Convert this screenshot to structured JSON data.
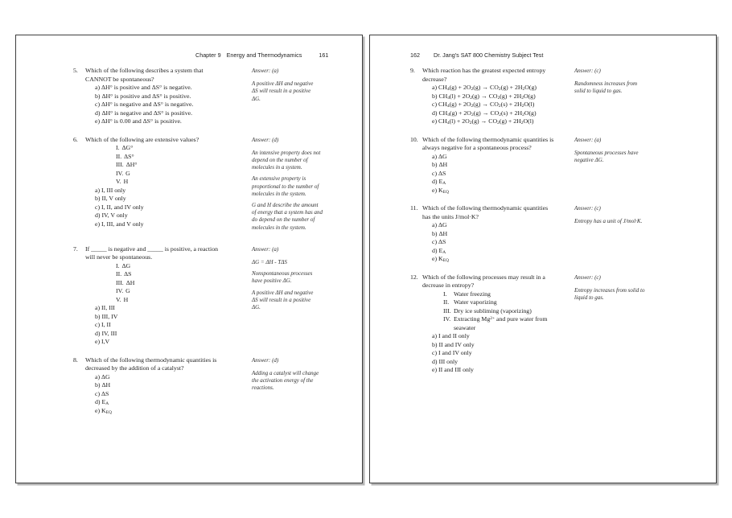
{
  "pages": [
    {
      "header": {
        "chapter": "Chapter 9",
        "title": "Energy and Thermodynamics",
        "page_number": "161"
      },
      "questions": [
        {
          "num": "5.",
          "text": "Which of the following describes a system that<br>CANNOT be spontaneous?",
          "romans": [],
          "roman_tab": false,
          "options": [
            "a) ΔH° is positive and ΔS° is negative.",
            "b) ΔH° is positive and ΔS° is positive.",
            "c) ΔH° is negative and ΔS° is negative.",
            "d) ΔH° is negative and ΔS° is positive.",
            "e) ΔH° is 0.00 and ΔS° is positive."
          ],
          "answer": {
            "label": "Answer: (a)",
            "notes": [
              "A positive ΔH and negative<br>ΔS will result in a positive<br>ΔG."
            ]
          }
        },
        {
          "num": "6.",
          "text": "Which of the following are extensive values?",
          "romans": [
            {
              "n": "I.",
              "t": "ΔG°"
            },
            {
              "n": "II.",
              "t": "ΔS°"
            },
            {
              "n": "III.",
              "t": "ΔH°"
            },
            {
              "n": "IV.",
              "t": "G"
            },
            {
              "n": "V.",
              "t": "H"
            }
          ],
          "roman_tab": false,
          "options": [
            "a) I, III only",
            "b) II, V only",
            "c) I, II, and IV only",
            "d) IV, V only",
            "e) I, III, and V only"
          ],
          "answer": {
            "label": "Answer: (d)",
            "notes": [
              "An intensive property does not<br>depend on the number of<br>molecules in a system.",
              "An extensive property is<br>proportional to the number of<br>molecules in the system.",
              "G and H describe the amount<br>of energy that a system has and<br>do depend on the number of<br>molecules in the system."
            ]
          }
        },
        {
          "num": "7.",
          "text": "If _____ is negative and _____ is positive, a reaction<br>will never be spontaneous.",
          "romans": [
            {
              "n": "I.",
              "t": "ΔG"
            },
            {
              "n": "II.",
              "t": "ΔS"
            },
            {
              "n": "III.",
              "t": "ΔH"
            },
            {
              "n": "IV.",
              "t": "G"
            },
            {
              "n": "V.",
              "t": "H"
            }
          ],
          "roman_tab": false,
          "options": [
            "a) II, III",
            "b) III, IV",
            "c) I, II",
            "d) IV, III",
            "e) I,V"
          ],
          "answer": {
            "label": "Answer: (a)",
            "notes": [
              "ΔG  = ΔH  - TΔS",
              "Nonspontaneous processes<br>have positive ΔG.",
              "A positive ΔH and negative<br>ΔS will result in a positive<br>ΔG."
            ]
          }
        },
        {
          "num": "8.",
          "text": "Which of the following thermodynamic quantities is<br>decreased by the addition of a catalyst?",
          "romans": [],
          "roman_tab": false,
          "options": [
            "a) ΔG",
            "b) ΔH",
            "c) ΔS",
            "d) E<sub>A</sub>",
            "e) K<sub>EQ</sub>"
          ],
          "answer": {
            "label": "Answer: (d)",
            "notes": [
              "Adding a catalyst will change<br>the activation energy of the<br>reactions."
            ]
          }
        }
      ]
    },
    {
      "header": {
        "page_number": "162",
        "title": "Dr. Jang's SAT 800 Chemistry Subject Test"
      },
      "questions": [
        {
          "num": "9.",
          "text": "Which reaction has the greatest expected entropy<br>decrease?",
          "romans": [],
          "roman_tab": false,
          "options": [
            "a) CH<sub>4</sub>(g) + 2O<sub>2</sub>(g) → CO<sub>2</sub>(g) + 2H<sub>2</sub>O(g)",
            "b) CH<sub>4</sub>(l) + 2O<sub>2</sub>(g) → CO<sub>2</sub>(g) + 2H<sub>2</sub>O(g)",
            "c) CH<sub>4</sub>(g) + 2O<sub>2</sub>(g) → CO<sub>2</sub>(s) + 2H<sub>2</sub>O(l)",
            "d) CH<sub>4</sub>(g) + 2O<sub>2</sub>(g) → CO<sub>2</sub>(s) + 2H<sub>2</sub>O(g)",
            "e) CH<sub>4</sub>(l) + 2O<sub>2</sub>(g) → CO<sub>2</sub>(g) + 2H<sub>2</sub>O(l)"
          ],
          "answer": {
            "label": "Answer: (c)",
            "notes": [
              "Randomness increases from<br>solid to liquid to gas."
            ]
          }
        },
        {
          "num": "10.",
          "text": "Which of the following thermodynamic quantities is<br>always negative for a spontaneous process?",
          "romans": [],
          "roman_tab": false,
          "options": [
            "a) ΔG",
            "b) ΔH",
            "c) ΔS",
            "d) E<sub>A</sub>",
            "e) K<sub>EQ</sub>"
          ],
          "answer": {
            "label": "Answer: (a)",
            "notes": [
              "Spontaneous processes have<br>negative ΔG."
            ]
          }
        },
        {
          "num": "11.",
          "text": "Which of the following thermodynamic quantities<br>has the units J/mol·K?",
          "romans": [],
          "roman_tab": false,
          "options": [
            "a) ΔG",
            "b) ΔH",
            "c) ΔS",
            "d) E<sub>A</sub>",
            "e) K<sub>EQ</sub>"
          ],
          "answer": {
            "label": "Answer: (c)",
            "notes": [
              "Entropy has a unit of J/mol·K."
            ]
          }
        },
        {
          "num": "12.",
          "text": "Which of the following processes may result in a<br>decrease in entropy?",
          "romans": [
            {
              "n": "I.",
              "t": "Water freezing"
            },
            {
              "n": "II.",
              "t": "Water vaporizing"
            },
            {
              "n": "III.",
              "t": "Dry ice subliming (vaporizing)"
            },
            {
              "n": "IV.",
              "t": "Extracting Mg<sup>2+</sup> and pure water from<br>seawater"
            }
          ],
          "roman_tab": true,
          "options": [
            "a) I and II only",
            "b) II and IV only",
            "c) I and IV only",
            "d) III only",
            "e) II and III only"
          ],
          "answer": {
            "label": "Answer: (c)",
            "notes": [
              "Entropy increases from solid to<br>liquid to gas."
            ]
          }
        }
      ]
    }
  ]
}
